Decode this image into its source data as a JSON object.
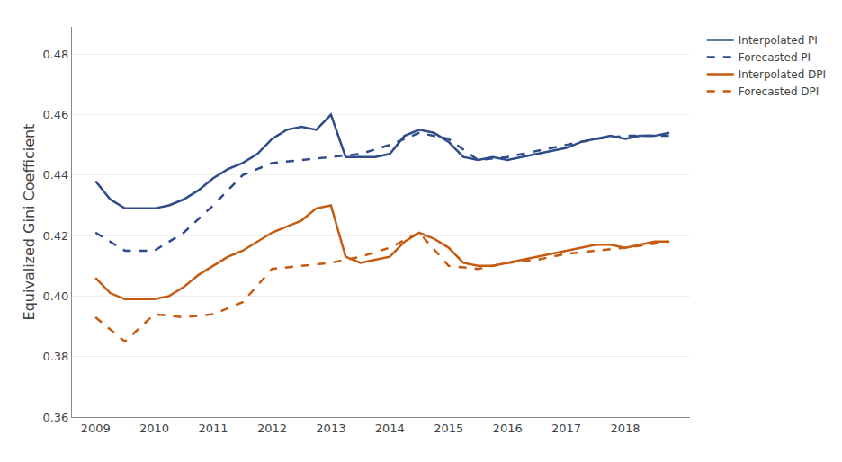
{
  "chart_data": {
    "type": "line",
    "ylabel": "Equivalized Gini Coefficient",
    "series": [
      {
        "name": "Interpolated PI",
        "color": "#2E4B8A",
        "line_style": "solid",
        "x": [
          2009.0,
          2009.25,
          2009.5,
          2009.75,
          2010.0,
          2010.25,
          2010.5,
          2010.75,
          2011.0,
          2011.25,
          2011.5,
          2011.75,
          2012.0,
          2012.25,
          2012.5,
          2012.75,
          2013.0,
          2013.25,
          2013.5,
          2013.75,
          2014.0,
          2014.25,
          2014.5,
          2014.75,
          2015.0,
          2015.25,
          2015.5,
          2015.75,
          2016.0,
          2016.25,
          2016.5,
          2016.75,
          2017.0,
          2017.25,
          2017.5,
          2017.75,
          2018.0,
          2018.25,
          2018.5,
          2018.75
        ],
        "values": [
          0.438,
          0.432,
          0.429,
          0.429,
          0.429,
          0.43,
          0.432,
          0.435,
          0.439,
          0.442,
          0.444,
          0.447,
          0.452,
          0.455,
          0.456,
          0.455,
          0.46,
          0.446,
          0.446,
          0.446,
          0.447,
          0.453,
          0.455,
          0.454,
          0.451,
          0.446,
          0.445,
          0.446,
          0.445,
          0.446,
          0.447,
          0.448,
          0.449,
          0.451,
          0.452,
          0.453,
          0.452,
          0.453,
          0.453,
          0.454
        ]
      },
      {
        "name": "Forecasted PI",
        "color": "#2E4B8A",
        "line_style": "dashed",
        "x": [
          2009.0,
          2009.5,
          2010.0,
          2010.5,
          2011.0,
          2011.5,
          2012.0,
          2012.5,
          2013.0,
          2013.5,
          2014.0,
          2014.5,
          2015.0,
          2015.5,
          2016.0,
          2016.5,
          2017.0,
          2017.5,
          2018.0,
          2018.75
        ],
        "values": [
          0.421,
          0.415,
          0.415,
          0.421,
          0.43,
          0.44,
          0.444,
          0.445,
          0.446,
          0.447,
          0.45,
          0.454,
          0.452,
          0.445,
          0.446,
          0.448,
          0.45,
          0.452,
          0.453,
          0.453
        ]
      },
      {
        "name": "Interpolated DPI",
        "color": "#C55A11",
        "line_style": "solid",
        "x": [
          2009.0,
          2009.25,
          2009.5,
          2009.75,
          2010.0,
          2010.25,
          2010.5,
          2010.75,
          2011.0,
          2011.25,
          2011.5,
          2011.75,
          2012.0,
          2012.25,
          2012.5,
          2012.75,
          2013.0,
          2013.25,
          2013.5,
          2013.75,
          2014.0,
          2014.25,
          2014.5,
          2014.75,
          2015.0,
          2015.25,
          2015.5,
          2015.75,
          2016.0,
          2016.25,
          2016.5,
          2016.75,
          2017.0,
          2017.25,
          2017.5,
          2017.75,
          2018.0,
          2018.25,
          2018.5,
          2018.75
        ],
        "values": [
          0.406,
          0.401,
          0.399,
          0.399,
          0.399,
          0.4,
          0.403,
          0.407,
          0.41,
          0.413,
          0.415,
          0.418,
          0.421,
          0.423,
          0.425,
          0.429,
          0.43,
          0.413,
          0.411,
          0.412,
          0.413,
          0.418,
          0.421,
          0.419,
          0.416,
          0.411,
          0.41,
          0.41,
          0.411,
          0.412,
          0.413,
          0.414,
          0.415,
          0.416,
          0.417,
          0.417,
          0.416,
          0.417,
          0.418,
          0.418
        ]
      },
      {
        "name": "Forecasted DPI",
        "color": "#C55A11",
        "line_style": "dashed",
        "x": [
          2009.0,
          2009.5,
          2010.0,
          2010.5,
          2011.0,
          2011.5,
          2012.0,
          2012.5,
          2013.0,
          2013.5,
          2014.0,
          2014.5,
          2015.0,
          2015.5,
          2016.0,
          2016.5,
          2017.0,
          2017.5,
          2018.0,
          2018.75
        ],
        "values": [
          0.393,
          0.385,
          0.394,
          0.393,
          0.394,
          0.398,
          0.409,
          0.41,
          0.411,
          0.413,
          0.416,
          0.421,
          0.41,
          0.409,
          0.411,
          0.412,
          0.414,
          0.415,
          0.416,
          0.418
        ]
      }
    ],
    "xlim": [
      2008.6,
      2019.1
    ],
    "xticks": [
      2009,
      2010,
      2011,
      2012,
      2013,
      2014,
      2015,
      2016,
      2017,
      2018
    ],
    "ylim": [
      0.36,
      0.489
    ],
    "yticks": [
      0.36,
      0.38,
      {
        "value": 0.4,
        "label": "0.40"
      },
      0.42,
      0.44,
      0.46,
      0.48
    ],
    "grid": "y",
    "legend": "upper right"
  }
}
